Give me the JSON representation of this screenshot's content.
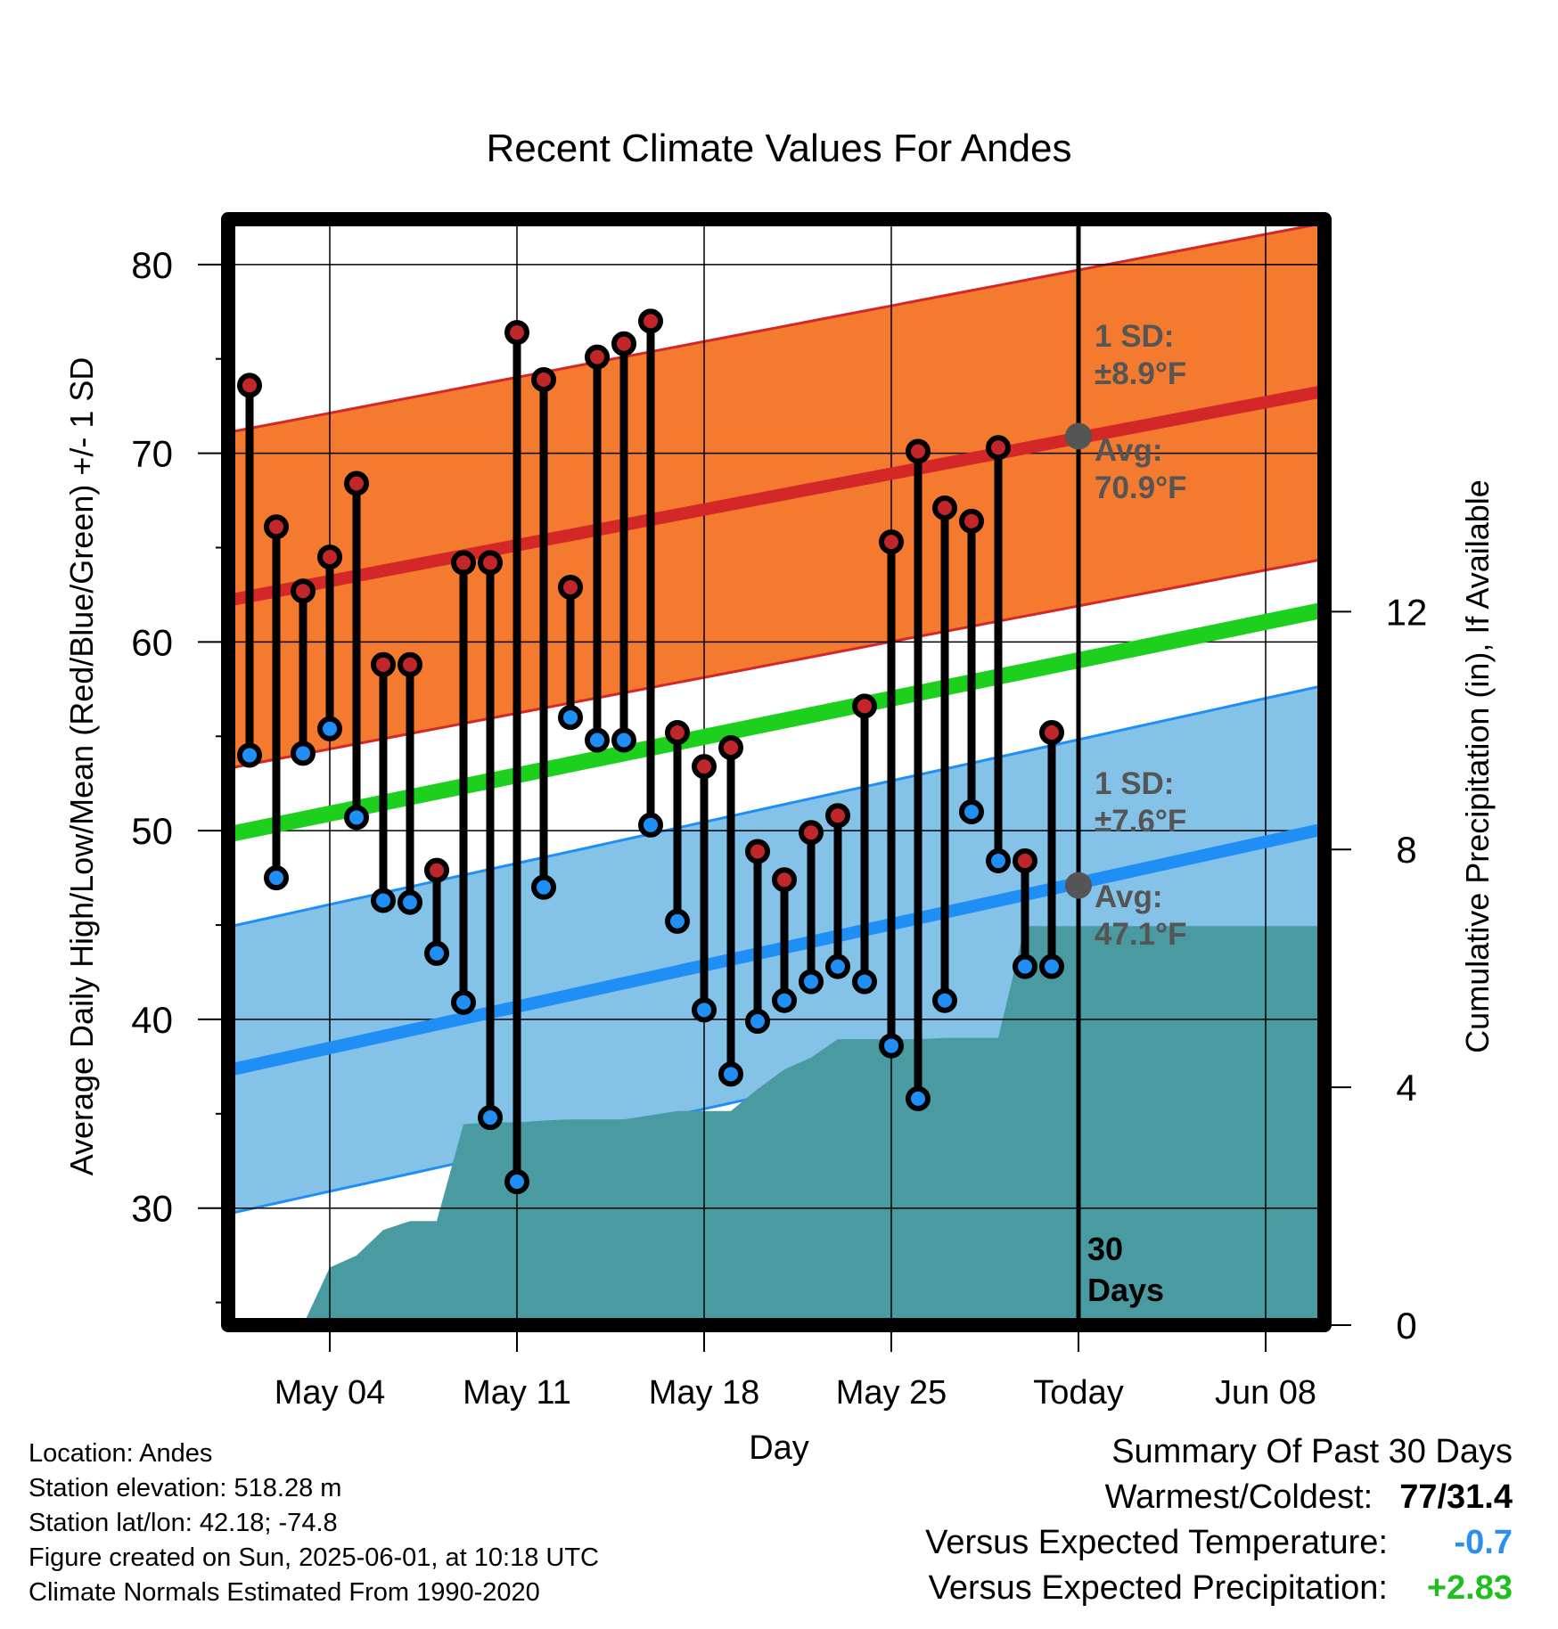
{
  "chart_data": {
    "type": "line",
    "title": "Recent Climate Values For Andes",
    "xlabel": "Day",
    "ylabel": "Average Daily High/Low/Mean (Red/Blue/Green) +/- 1 SD",
    "y2label": "Cumulative Precipitation (in), If Available",
    "ylim": [
      23.8,
      82.4
    ],
    "y2lim": [
      0,
      18.6
    ],
    "yticks": [
      30,
      40,
      50,
      60,
      70,
      80
    ],
    "y2ticks": [
      0,
      4,
      8,
      12
    ],
    "xlim": [
      -0.8,
      40.2
    ],
    "xticks": [
      {
        "day": 3,
        "label": "May 04"
      },
      {
        "day": 10,
        "label": "May 11"
      },
      {
        "day": 17,
        "label": "May 18"
      },
      {
        "day": 24,
        "label": "May 25"
      },
      {
        "day": 31,
        "label": "Today"
      },
      {
        "day": 38,
        "label": "Jun 08"
      }
    ],
    "today_day": 31,
    "normal_high": {
      "start": 62.2,
      "end": 73.3,
      "sd": 8.9
    },
    "normal_low": {
      "start": 37.3,
      "end": 50.1,
      "sd": 7.6
    },
    "normal_mean": {
      "start": 49.8,
      "end": 61.7
    },
    "high_annotation": {
      "sd_label": "1 SD:",
      "sd_value": "±8.9°F",
      "avg_label": "Avg:",
      "avg_value": "70.9°F",
      "avg": 70.9
    },
    "low_annotation": {
      "sd_label": "1 SD:",
      "sd_value": "±7.6°F",
      "avg_label": "Avg:",
      "avg_value": "47.1°F",
      "avg": 47.1
    },
    "days_label_1": "30",
    "days_label_2": "Days",
    "daily": {
      "days": [
        0,
        1,
        2,
        3,
        4,
        5,
        6,
        7,
        8,
        9,
        10,
        11,
        12,
        13,
        14,
        15,
        16,
        17,
        18,
        19,
        20,
        21,
        22,
        23,
        24,
        25,
        26,
        27,
        28,
        29,
        30
      ],
      "highs": [
        73.6,
        66.1,
        62.7,
        64.5,
        68.4,
        58.8,
        58.8,
        47.9,
        64.2,
        64.2,
        76.4,
        73.9,
        62.9,
        75.1,
        75.8,
        77.0,
        55.2,
        53.4,
        54.4,
        48.9,
        47.4,
        49.9,
        50.8,
        56.6,
        65.3,
        70.1,
        67.1,
        66.4,
        70.3,
        48.4,
        55.2
      ],
      "lows": [
        54.0,
        47.5,
        54.1,
        55.4,
        50.7,
        46.3,
        46.2,
        43.5,
        40.9,
        34.8,
        31.4,
        47.0,
        56.0,
        54.8,
        54.8,
        50.3,
        45.2,
        40.5,
        37.1,
        39.9,
        41.0,
        42.0,
        42.8,
        42.0,
        38.6,
        35.8,
        41.0,
        51.0,
        48.4,
        42.8,
        42.8
      ]
    },
    "precip": {
      "days": [
        0,
        1,
        2,
        3,
        4,
        5,
        6,
        7,
        8,
        9,
        10,
        11,
        12,
        13,
        14,
        15,
        16,
        17,
        18,
        19,
        20,
        21,
        22,
        23,
        24,
        25,
        26,
        27,
        28,
        29,
        30,
        31,
        39.9
      ],
      "cumulative": [
        0,
        0,
        0,
        0.97,
        1.17,
        1.6,
        1.75,
        1.75,
        3.38,
        3.41,
        3.41,
        3.44,
        3.46,
        3.46,
        3.46,
        3.53,
        3.6,
        3.6,
        3.6,
        3.97,
        4.3,
        4.5,
        4.81,
        4.81,
        4.81,
        4.81,
        4.83,
        4.83,
        4.83,
        6.71,
        6.71,
        6.71,
        6.71
      ]
    }
  },
  "footer": {
    "location": "Location: Andes",
    "elevation": "Station elevation: 518.28 m",
    "latlon": "Station lat/lon: 42.18; -74.8",
    "created": "Figure created on Sun, 2025-06-01, at 10:18 UTC",
    "normals": "Climate Normals Estimated From 1990-2020"
  },
  "summary": {
    "title": "Summary Of Past 30 Days",
    "warmest_label": "Warmest/Coldest:",
    "warmest_value": "77/31.4",
    "temp_label": "Versus Expected Temperature:",
    "temp_value": "-0.7",
    "temp_color": "#2a8ff0",
    "precip_label": "Versus Expected Precipitation:",
    "precip_value": "+2.83",
    "precip_color": "#1fbf1f"
  },
  "colors": {
    "high_band": "#f47a30",
    "high_line": "#d42828",
    "low_band": "#84c2e8",
    "low_line": "#1f8ff5",
    "mean_line": "#1ed01e",
    "precip": "#4a9aa2",
    "annotation": "#555555"
  }
}
